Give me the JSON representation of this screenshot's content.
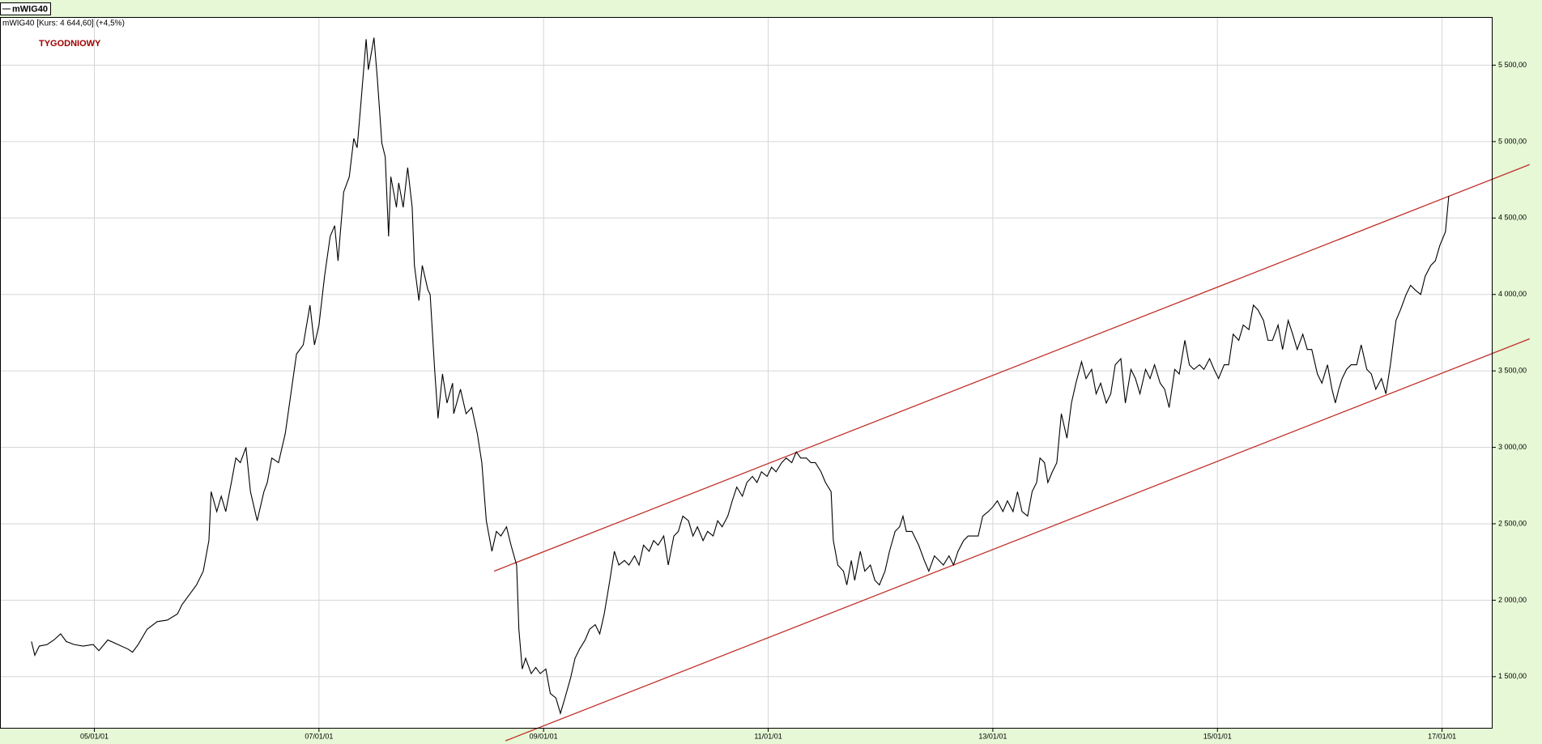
{
  "chart_data": {
    "type": "line",
    "title": "mWIG40 [Kurs: 4 644,60] (+4,5%)",
    "annotation": "TYGODNIOWY",
    "xlim": [
      2004.16,
      2017.45
    ],
    "ylim": [
      1160,
      5815
    ],
    "xticks": [
      {
        "value": 2005,
        "label": "05/01/01"
      },
      {
        "value": 2007,
        "label": "07/01/01"
      },
      {
        "value": 2009,
        "label": "09/01/01"
      },
      {
        "value": 2011,
        "label": "11/01/01"
      },
      {
        "value": 2013,
        "label": "13/01/01"
      },
      {
        "value": 2015,
        "label": "15/01/01"
      },
      {
        "value": 2017,
        "label": "17/01/01"
      }
    ],
    "yticks": [
      {
        "value": 1500,
        "label": "1 500,00"
      },
      {
        "value": 2000,
        "label": "2 000,00"
      },
      {
        "value": 2500,
        "label": "2 500,00"
      },
      {
        "value": 3000,
        "label": "3 000,00"
      },
      {
        "value": 3500,
        "label": "3 500,00"
      },
      {
        "value": 4000,
        "label": "4 000,00"
      },
      {
        "value": 4500,
        "label": "4 500,00"
      },
      {
        "value": 5000,
        "label": "5 000,00"
      },
      {
        "value": 5500,
        "label": "5 500,00"
      }
    ],
    "grid": true,
    "x": [
      2004.44,
      2004.47,
      2004.51,
      2004.58,
      2004.64,
      2004.7,
      2004.75,
      2004.82,
      2004.9,
      2004.99,
      2005.04,
      2005.12,
      2005.21,
      2005.3,
      2005.34,
      2005.39,
      2005.47,
      2005.56,
      2005.65,
      2005.74,
      2005.78,
      2005.84,
      2005.91,
      2005.97,
      2006.02,
      2006.04,
      2006.09,
      2006.13,
      2006.17,
      2006.22,
      2006.26,
      2006.3,
      2006.35,
      2006.39,
      2006.45,
      2006.51,
      2006.54,
      2006.58,
      2006.64,
      2006.7,
      2006.75,
      2006.8,
      2006.86,
      2006.92,
      2006.96,
      2007.0,
      2007.05,
      2007.1,
      2007.14,
      2007.17,
      2007.22,
      2007.27,
      2007.31,
      2007.34,
      2007.37,
      2007.42,
      2007.44,
      2007.49,
      2007.52,
      2007.56,
      2007.59,
      2007.62,
      2007.64,
      2007.69,
      2007.71,
      2007.75,
      2007.79,
      2007.83,
      2007.85,
      2007.89,
      2007.92,
      2007.97,
      2007.99,
      2008.03,
      2008.06,
      2008.1,
      2008.14,
      2008.19,
      2008.2,
      2008.26,
      2008.31,
      2008.36,
      2008.41,
      2008.45,
      2008.49,
      2008.54,
      2008.58,
      2008.62,
      2008.67,
      2008.71,
      2008.76,
      2008.78,
      2008.81,
      2008.84,
      2008.89,
      2008.93,
      2008.97,
      2009.02,
      2009.06,
      2009.11,
      2009.15,
      2009.19,
      2009.24,
      2009.28,
      2009.32,
      2009.37,
      2009.41,
      2009.46,
      2009.5,
      2009.54,
      2009.59,
      2009.63,
      2009.67,
      2009.72,
      2009.76,
      2009.81,
      2009.85,
      2009.89,
      2009.94,
      2009.98,
      2010.02,
      2010.07,
      2010.11,
      2010.16,
      2010.2,
      2010.24,
      2010.29,
      2010.33,
      2010.37,
      2010.42,
      2010.46,
      2010.51,
      2010.55,
      2010.59,
      2010.64,
      2010.68,
      2010.72,
      2010.77,
      2010.81,
      2010.86,
      2010.9,
      2010.94,
      2010.99,
      2011.03,
      2011.07,
      2011.12,
      2011.16,
      2011.21,
      2011.25,
      2011.29,
      2011.34,
      2011.38,
      2011.42,
      2011.47,
      2011.51,
      2011.56,
      2011.58,
      2011.62,
      2011.67,
      2011.7,
      2011.74,
      2011.77,
      2011.82,
      2011.86,
      2011.91,
      2011.95,
      2011.99,
      2012.04,
      2012.08,
      2012.13,
      2012.17,
      2012.2,
      2012.23,
      2012.28,
      2012.34,
      2012.39,
      2012.43,
      2012.48,
      2012.52,
      2012.56,
      2012.61,
      2012.65,
      2012.69,
      2012.74,
      2012.78,
      2012.83,
      2012.87,
      2012.91,
      2012.96,
      2013.0,
      2013.04,
      2013.09,
      2013.13,
      2013.18,
      2013.22,
      2013.26,
      2013.31,
      2013.35,
      2013.39,
      2013.42,
      2013.46,
      2013.49,
      2013.53,
      2013.57,
      2013.61,
      2013.66,
      2013.7,
      2013.74,
      2013.79,
      2013.83,
      2013.88,
      2013.92,
      2013.96,
      2014.01,
      2014.05,
      2014.09,
      2014.14,
      2014.18,
      2014.23,
      2014.27,
      2014.31,
      2014.36,
      2014.4,
      2014.44,
      2014.49,
      2014.53,
      2014.57,
      2014.62,
      2014.66,
      2014.71,
      2014.75,
      2014.79,
      2014.84,
      2014.88,
      2014.93,
      2014.97,
      2015.01,
      2015.06,
      2015.1,
      2015.14,
      2015.19,
      2015.23,
      2015.28,
      2015.32,
      2015.36,
      2015.41,
      2015.45,
      2015.49,
      2015.54,
      2015.58,
      2015.63,
      2015.67,
      2015.71,
      2015.76,
      2015.8,
      2015.84,
      2015.89,
      2015.93,
      2015.98,
      2016.02,
      2016.05,
      2016.08,
      2016.11,
      2016.15,
      2016.19,
      2016.24,
      2016.28,
      2016.33,
      2016.37,
      2016.41,
      2016.46,
      2016.5,
      2016.54,
      2016.59,
      2016.63,
      2016.68,
      2016.72,
      2016.76,
      2016.81,
      2016.85,
      2016.9,
      2016.94,
      2016.98,
      2017.03,
      2017.06
    ],
    "series": [
      {
        "name": "mWIG40",
        "color": "#000000",
        "values": [
          1730,
          1640,
          1700,
          1710,
          1740,
          1780,
          1730,
          1710,
          1700,
          1710,
          1670,
          1740,
          1710,
          1680,
          1660,
          1710,
          1810,
          1860,
          1870,
          1910,
          1970,
          2030,
          2100,
          2190,
          2390,
          2710,
          2580,
          2680,
          2580,
          2770,
          2930,
          2900,
          3000,
          2710,
          2520,
          2710,
          2770,
          2930,
          2900,
          3090,
          3350,
          3610,
          3670,
          3930,
          3670,
          3800,
          4120,
          4380,
          4450,
          4220,
          4670,
          4770,
          5020,
          4960,
          5220,
          5670,
          5470,
          5680,
          5410,
          4990,
          4900,
          4380,
          4770,
          4570,
          4730,
          4570,
          4830,
          4570,
          4190,
          3960,
          4190,
          4030,
          4000,
          3510,
          3190,
          3480,
          3290,
          3420,
          3220,
          3380,
          3220,
          3260,
          3090,
          2900,
          2520,
          2320,
          2450,
          2420,
          2480,
          2360,
          2230,
          1810,
          1550,
          1620,
          1520,
          1560,
          1520,
          1550,
          1390,
          1360,
          1260,
          1360,
          1490,
          1620,
          1680,
          1740,
          1810,
          1840,
          1780,
          1910,
          2130,
          2320,
          2230,
          2260,
          2230,
          2290,
          2230,
          2360,
          2320,
          2390,
          2360,
          2420,
          2230,
          2420,
          2450,
          2550,
          2520,
          2420,
          2480,
          2390,
          2450,
          2420,
          2520,
          2480,
          2550,
          2650,
          2740,
          2680,
          2770,
          2810,
          2770,
          2840,
          2810,
          2870,
          2840,
          2900,
          2930,
          2900,
          2970,
          2930,
          2930,
          2900,
          2900,
          2840,
          2770,
          2710,
          2390,
          2230,
          2190,
          2100,
          2260,
          2130,
          2320,
          2190,
          2230,
          2130,
          2100,
          2190,
          2320,
          2450,
          2480,
          2550,
          2450,
          2450,
          2360,
          2260,
          2190,
          2290,
          2260,
          2230,
          2290,
          2230,
          2320,
          2390,
          2420,
          2420,
          2420,
          2550,
          2580,
          2610,
          2650,
          2580,
          2650,
          2580,
          2710,
          2580,
          2550,
          2710,
          2770,
          2930,
          2900,
          2770,
          2840,
          2900,
          3220,
          3060,
          3290,
          3420,
          3560,
          3450,
          3510,
          3350,
          3420,
          3290,
          3350,
          3540,
          3580,
          3290,
          3510,
          3450,
          3350,
          3510,
          3450,
          3540,
          3420,
          3380,
          3260,
          3510,
          3480,
          3700,
          3540,
          3510,
          3540,
          3510,
          3580,
          3510,
          3450,
          3540,
          3540,
          3740,
          3700,
          3800,
          3770,
          3930,
          3900,
          3830,
          3700,
          3700,
          3800,
          3640,
          3830,
          3740,
          3640,
          3740,
          3640,
          3640,
          3480,
          3420,
          3540,
          3380,
          3290,
          3380,
          3450,
          3510,
          3540,
          3540,
          3670,
          3510,
          3480,
          3380,
          3450,
          3350,
          3540,
          3830,
          3900,
          4000,
          4060,
          4030,
          4000,
          4120,
          4190,
          4220,
          4320,
          4410,
          4644.6
        ]
      }
    ],
    "trend_lines": [
      {
        "color": "#c0302a",
        "x": [
          2008.56,
          2017.78
        ],
        "values": [
          2190,
          4850
        ]
      },
      {
        "color": "#c0302a",
        "x": [
          2008.66,
          2017.78
        ],
        "values": [
          1080,
          3710
        ]
      }
    ]
  }
}
